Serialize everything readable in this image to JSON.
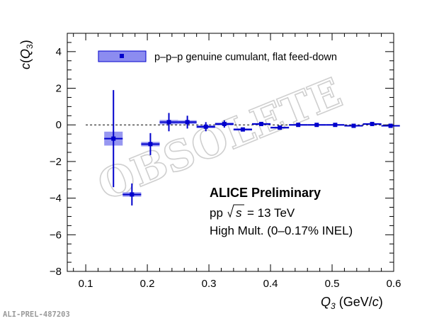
{
  "chart_data": {
    "type": "scatter",
    "title": "",
    "xlabel": "Q_3 (GeV/c)",
    "ylabel": "c(Q_3)",
    "xlim": [
      0.07,
      0.6
    ],
    "ylim": [
      -8,
      5
    ],
    "xticks": [
      "0.1",
      "0.2",
      "0.3",
      "0.4",
      "0.5",
      "0.6"
    ],
    "yticks": [
      "−8",
      "−6",
      "−4",
      "−2",
      "0",
      "2",
      "4"
    ],
    "xtick_values": [
      0.1,
      0.2,
      0.3,
      0.4,
      0.5,
      0.6
    ],
    "ytick_values": [
      -8,
      -6,
      -4,
      -2,
      0,
      2,
      4
    ],
    "legend": {
      "placement": "top-left",
      "entries": [
        "p–p–p genuine cumulant, flat feed-down"
      ]
    },
    "series": [
      {
        "name": "p–p–p genuine cumulant, flat feed-down",
        "color": "#0000cc",
        "sys_color": "#8c8cf0",
        "bin_half_width": 0.015,
        "x": [
          0.145,
          0.175,
          0.205,
          0.235,
          0.265,
          0.295,
          0.325,
          0.355,
          0.385,
          0.415,
          0.445,
          0.475,
          0.505,
          0.535,
          0.565,
          0.595
        ],
        "y": [
          -0.75,
          -3.8,
          -1.05,
          0.15,
          0.15,
          -0.1,
          0.05,
          -0.25,
          0.05,
          -0.15,
          0.0,
          0.0,
          0.0,
          -0.05,
          0.05,
          -0.05
        ],
        "stat_err": [
          2.65,
          0.6,
          0.6,
          0.5,
          0.35,
          0.25,
          0.2,
          0.1,
          0.1,
          0.1,
          0.05,
          0.05,
          0.05,
          0.05,
          0.05,
          0.05
        ],
        "sys_err": [
          0.38,
          0.12,
          0.12,
          0.12,
          0.1,
          0.08,
          0.08,
          0.06,
          0.05,
          0.05,
          0.04,
          0.04,
          0.04,
          0.04,
          0.04,
          0.04
        ]
      }
    ],
    "reference_line": 0,
    "annotations": [
      "ALICE Preliminary",
      "pp",
      "s",
      "= 13 TeV",
      "High Mult. (0–0.17% INEL)"
    ]
  },
  "watermark": "OBSOLETE",
  "figure_id": "ALI-PREL-487203"
}
